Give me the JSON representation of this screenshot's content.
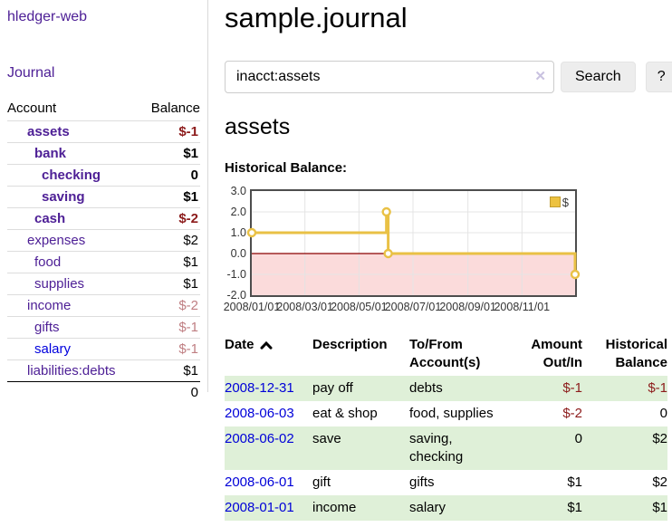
{
  "sidebar": {
    "brand": "hledger-web",
    "journal_link": "Journal",
    "account_table": {
      "headers": {
        "account": "Account",
        "balance": "Balance"
      },
      "rows": [
        {
          "account": "assets",
          "indent": 1,
          "bold": true,
          "unvisited": false,
          "balance": "$-1",
          "balance_class": "neg"
        },
        {
          "account": "bank",
          "indent": 2,
          "bold": true,
          "unvisited": false,
          "balance": "$1",
          "balance_class": ""
        },
        {
          "account": "checking",
          "indent": 3,
          "bold": true,
          "unvisited": false,
          "balance": "0",
          "balance_class": ""
        },
        {
          "account": "saving",
          "indent": 3,
          "bold": true,
          "unvisited": false,
          "balance": "$1",
          "balance_class": ""
        },
        {
          "account": "cash",
          "indent": 2,
          "bold": true,
          "unvisited": false,
          "balance": "$-2",
          "balance_class": "neg"
        },
        {
          "account": "expenses",
          "indent": 1,
          "bold": false,
          "unvisited": false,
          "balance": "$2",
          "balance_class": ""
        },
        {
          "account": "food",
          "indent": 2,
          "bold": false,
          "unvisited": false,
          "balance": "$1",
          "balance_class": ""
        },
        {
          "account": "supplies",
          "indent": 2,
          "bold": false,
          "unvisited": false,
          "balance": "$1",
          "balance_class": ""
        },
        {
          "account": "income",
          "indent": 1,
          "bold": false,
          "unvisited": false,
          "balance": "$-2",
          "balance_class": "neg-muted"
        },
        {
          "account": "gifts",
          "indent": 2,
          "bold": false,
          "unvisited": false,
          "balance": "$-1",
          "balance_class": "neg-muted"
        },
        {
          "account": "salary",
          "indent": 2,
          "bold": false,
          "unvisited": true,
          "balance": "$-1",
          "balance_class": "neg-muted"
        },
        {
          "account": "liabilities:debts",
          "indent": 1,
          "bold": false,
          "unvisited": false,
          "balance": "$1",
          "balance_class": ""
        }
      ],
      "total": "0"
    }
  },
  "main": {
    "title": "sample.journal",
    "search": {
      "value": "inacct:assets",
      "clear_icon": "✕",
      "search_button": "Search",
      "help_button": "?"
    },
    "account_heading": "assets",
    "chart_title": "Historical Balance:",
    "register": {
      "headers": {
        "date": "Date",
        "sort_icon": "chevron-up",
        "description": "Description",
        "accounts": [
          "To/From",
          "Account(s)"
        ],
        "amount": [
          "Amount",
          "Out/In"
        ],
        "balance": [
          "Historical",
          "Balance"
        ]
      },
      "rows": [
        {
          "date": "2008-12-31",
          "description": "pay off",
          "accounts": "debts",
          "amount": "$-1",
          "amount_negative": true,
          "balance": "$-1",
          "balance_negative": true
        },
        {
          "date": "2008-06-03",
          "description": "eat & shop",
          "accounts": "food, supplies",
          "amount": "$-2",
          "amount_negative": true,
          "balance": "0",
          "balance_negative": false
        },
        {
          "date": "2008-06-02",
          "description": "save",
          "accounts": "saving, checking",
          "amount": "0",
          "amount_negative": false,
          "balance": "$2",
          "balance_negative": false
        },
        {
          "date": "2008-06-01",
          "description": "gift",
          "accounts": "gifts",
          "amount": "$1",
          "amount_negative": false,
          "balance": "$2",
          "balance_negative": false
        },
        {
          "date": "2008-01-01",
          "description": "income",
          "accounts": "salary",
          "amount": "$1",
          "amount_negative": false,
          "balance": "$1",
          "balance_negative": false
        }
      ]
    }
  },
  "chart_data": {
    "type": "line",
    "step": true,
    "title": "Historical Balance",
    "series": [
      {
        "name": "$",
        "color": "#edc240",
        "points": [
          [
            "2008-01-01",
            1
          ],
          [
            "2008-06-01",
            2
          ],
          [
            "2008-06-03",
            0
          ],
          [
            "2008-12-31",
            -1
          ]
        ]
      }
    ],
    "x_range": [
      "2008-01-01",
      "2008-12-31"
    ],
    "ylim": [
      -2,
      3
    ],
    "yticks": [
      3.0,
      2.0,
      1.0,
      0.0,
      -1.0,
      -2.0
    ],
    "xtick_labels": [
      "2008/01/01",
      "2008/03/01",
      "2008/05/01",
      "2008/07/01",
      "2008/09/01",
      "2008/11/01"
    ],
    "legend": {
      "label": "$",
      "position": "top-right",
      "swatch_color": "#edc240"
    },
    "colors": {
      "line": "#e9c145",
      "marker_fill": "#ffffff",
      "negative_region": "#fbdbdb",
      "zero_line": "#8b0000",
      "grid": "#e4e4e4",
      "border": "#4d4d4d"
    }
  }
}
